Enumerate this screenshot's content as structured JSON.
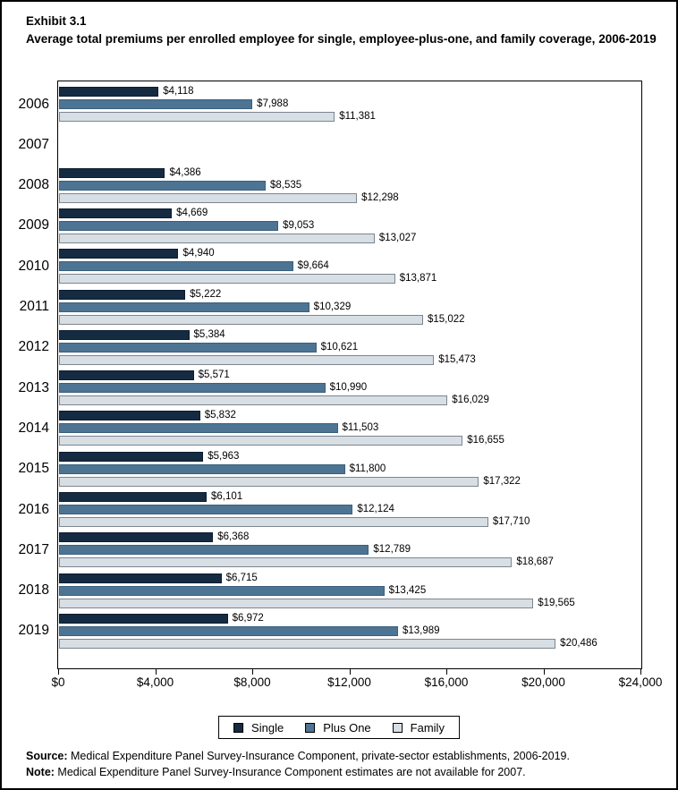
{
  "header": {
    "exhibit": "Exhibit 3.1",
    "title": "Average total premiums per enrolled employee for single, employee-plus-one, and family coverage, 2006-2019"
  },
  "chart_data": {
    "type": "bar",
    "orientation": "horizontal",
    "title": "Average total premiums per enrolled employee for single, employee-plus-one, and family coverage, 2006-2019",
    "categories": [
      "2006",
      "2007",
      "2008",
      "2009",
      "2010",
      "2011",
      "2012",
      "2013",
      "2014",
      "2015",
      "2016",
      "2017",
      "2018",
      "2019"
    ],
    "series": [
      {
        "name": "Single",
        "color": "#152b42",
        "border_color": "#0c1d2e",
        "values": [
          4118,
          null,
          4386,
          4669,
          4940,
          5222,
          5384,
          5571,
          5832,
          5963,
          6101,
          6368,
          6715,
          6972
        ],
        "labels": [
          "$4,118",
          "",
          "$4,386",
          "$4,669",
          "$4,940",
          "$5,222",
          "$5,384",
          "$5,571",
          "$5,832",
          "$5,963",
          "$6,101",
          "$6,368",
          "$6,715",
          "$6,972"
        ]
      },
      {
        "name": "Plus One",
        "color": "#4d7493",
        "border_color": "#3a5f7d",
        "values": [
          7988,
          null,
          8535,
          9053,
          9664,
          10329,
          10621,
          10990,
          11503,
          11800,
          12124,
          12789,
          13425,
          13989
        ],
        "labels": [
          "$7,988",
          "",
          "$8,535",
          "$9,053",
          "$9,664",
          "$10,329",
          "$10,621",
          "$10,990",
          "$11,503",
          "$11,800",
          "$12,124",
          "$12,789",
          "$13,425",
          "$13,989"
        ]
      },
      {
        "name": "Family",
        "color": "#d7dee4",
        "border_color": "#7d868e",
        "values": [
          11381,
          null,
          12298,
          13027,
          13871,
          15022,
          15473,
          16029,
          16655,
          17322,
          17710,
          18687,
          19565,
          20486
        ],
        "labels": [
          "$11,381",
          "",
          "$12,298",
          "$13,027",
          "$13,871",
          "$15,022",
          "$15,473",
          "$16,029",
          "$16,655",
          "$17,322",
          "$17,710",
          "$18,687",
          "$19,565",
          "$20,486"
        ]
      }
    ],
    "xlim": [
      0,
      24000
    ],
    "x_tick_values": [
      0,
      4000,
      8000,
      12000,
      16000,
      20000,
      24000
    ],
    "x_tick_labels": [
      "$0",
      "$4,000",
      "$8,000",
      "$12,000",
      "$16,000",
      "$20,000",
      "$24,000"
    ],
    "legend_position": "bottom",
    "grid": false
  },
  "footer": {
    "source_label": "Source:",
    "source_text": " Medical Expenditure Panel Survey-Insurance Component, private-sector establishments, 2006-2019.",
    "note_label": "Note:",
    "note_text": " Medical Expenditure Panel Survey-Insurance Component estimates are not available for 2007."
  }
}
